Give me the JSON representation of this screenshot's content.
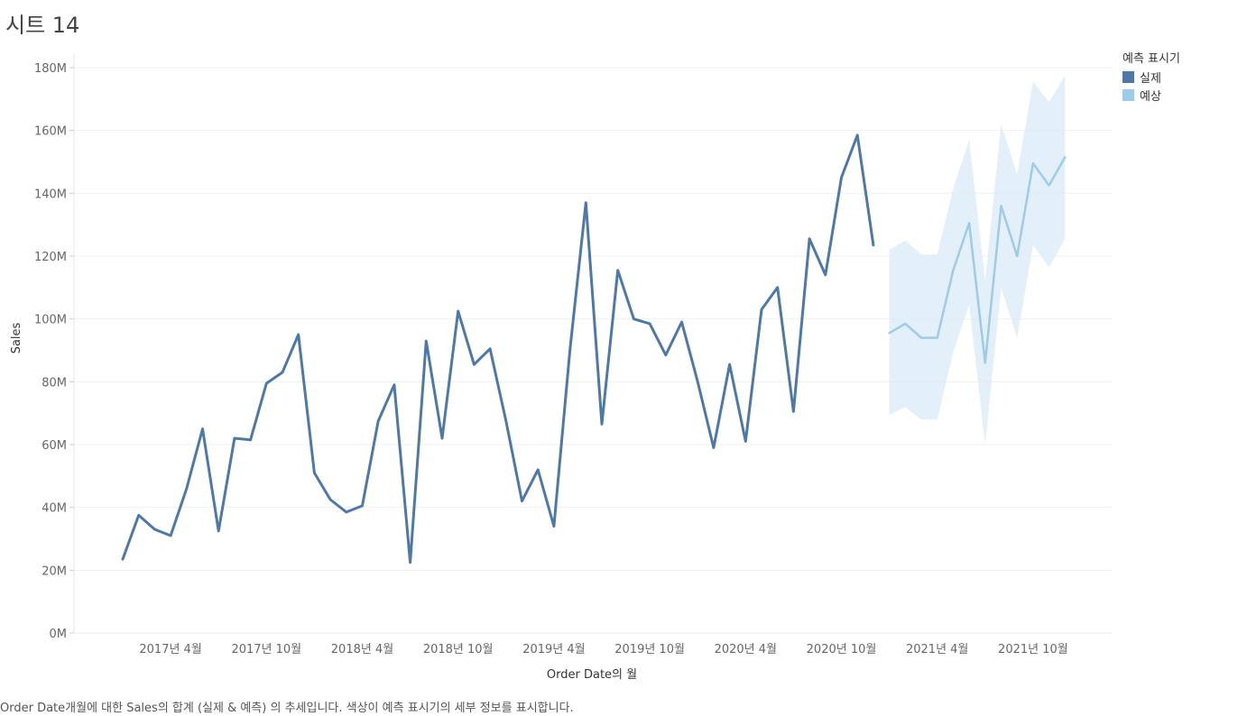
{
  "sheet": {
    "title": "시트 14"
  },
  "legend": {
    "title": "예측 표시기",
    "items": [
      {
        "label": "실제",
        "color": "#4e79a7"
      },
      {
        "label": "예상",
        "color": "#a0cbe8"
      }
    ]
  },
  "caption": "Order Date개월에 대한 Sales의 합계 (실제 & 예측) 의 추세입니다.  색상이 예측 표시기의 세부 정보를 표시합니다.",
  "chart_data": {
    "type": "line",
    "xlabel": "Order Date의 월",
    "ylabel": "Sales",
    "ylim": [
      0,
      180
    ],
    "y_ticks": [
      "0M",
      "20M",
      "40M",
      "60M",
      "80M",
      "100M",
      "120M",
      "140M",
      "160M",
      "180M"
    ],
    "x_ticks": [
      "2017년 4월",
      "2017년 10월",
      "2018년 4월",
      "2018년 10월",
      "2019년 4월",
      "2019년 10월",
      "2020년 4월",
      "2020년 10월",
      "2021년 4월",
      "2021년 10월"
    ],
    "series": [
      {
        "name": "실제",
        "color": "#4e79a7",
        "x": [
          "2017-01",
          "2017-02",
          "2017-03",
          "2017-04",
          "2017-05",
          "2017-06",
          "2017-07",
          "2017-08",
          "2017-09",
          "2017-10",
          "2017-11",
          "2017-12",
          "2018-01",
          "2018-02",
          "2018-03",
          "2018-04",
          "2018-05",
          "2018-06",
          "2018-07",
          "2018-08",
          "2018-09",
          "2018-10",
          "2018-11",
          "2018-12",
          "2019-01",
          "2019-02",
          "2019-03",
          "2019-04",
          "2019-05",
          "2019-06",
          "2019-07",
          "2019-08",
          "2019-09",
          "2019-10",
          "2019-11",
          "2019-12",
          "2020-01",
          "2020-02",
          "2020-03",
          "2020-04",
          "2020-05",
          "2020-06",
          "2020-07",
          "2020-08",
          "2020-09",
          "2020-10",
          "2020-11",
          "2020-12"
        ],
        "values": [
          23.5,
          37.5,
          33,
          31,
          46,
          65,
          32.5,
          62,
          61.5,
          79.5,
          83,
          95,
          51,
          42.5,
          38.5,
          40.5,
          67.5,
          79,
          22.5,
          93,
          62,
          102.5,
          85.5,
          90.5,
          67.5,
          42,
          52,
          34,
          90,
          137,
          66.5,
          115.5,
          100,
          98.5,
          88.5,
          99,
          80,
          59,
          85.5,
          61,
          103,
          110,
          70.5,
          125.5,
          114,
          145,
          158.5,
          123.5
        ]
      },
      {
        "name": "예상",
        "color": "#a0cbe8",
        "x": [
          "2021-01",
          "2021-02",
          "2021-03",
          "2021-04",
          "2021-05",
          "2021-06",
          "2021-07",
          "2021-08",
          "2021-09",
          "2021-10",
          "2021-11",
          "2021-12"
        ],
        "values": [
          95.5,
          98.5,
          94,
          94,
          115.5,
          130.5,
          86,
          136,
          120,
          149.5,
          142.5,
          151.5
        ],
        "lower": [
          69.5,
          72,
          68,
          68,
          89.5,
          104.5,
          60,
          110,
          94,
          123.5,
          116.5,
          125.5
        ],
        "upper": [
          122,
          125,
          120.5,
          120.5,
          141.5,
          157,
          112,
          162,
          146,
          175.5,
          169,
          177.5
        ]
      }
    ],
    "grid": true,
    "legend_position": "top-right"
  }
}
